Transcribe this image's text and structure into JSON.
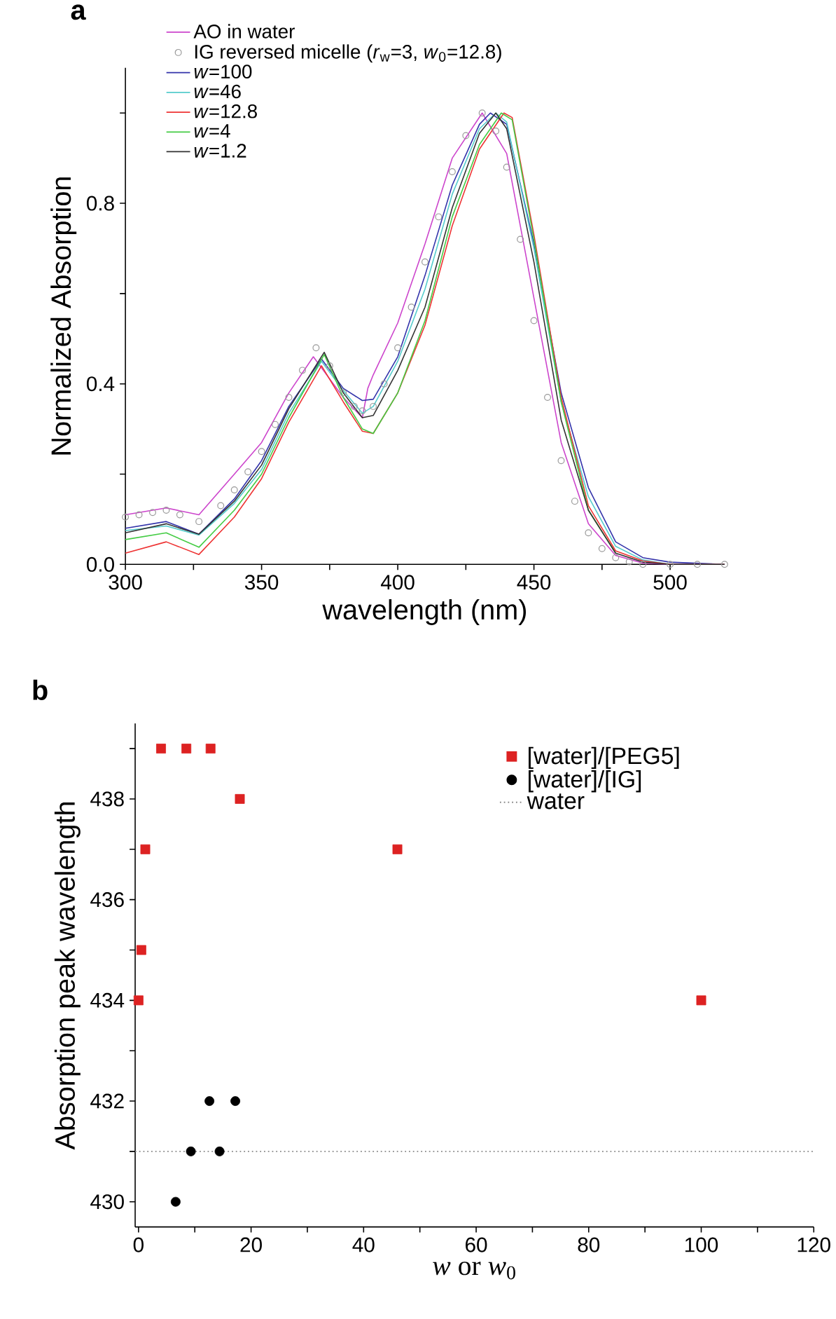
{
  "chart_data": [
    {
      "type": "line",
      "title": "a",
      "xlabel": "wavelength (nm)",
      "ylabel": "Normalized Absorption",
      "xlim": [
        300,
        520
      ],
      "ylim": [
        0,
        1.1
      ],
      "xticks": [
        300,
        {
          "value": 325,
          "label": null
        },
        350,
        {
          "value": 375,
          "label": null
        },
        400,
        {
          "value": 425,
          "label": null
        },
        450,
        {
          "value": 475,
          "label": null
        },
        500
      ],
      "yticks": [
        {
          "value": 0,
          "label": "0.0"
        },
        {
          "value": 0.2,
          "label": null
        },
        {
          "value": 0.4,
          "label": "0.4"
        },
        {
          "value": 0.6,
          "label": null
        },
        {
          "value": 0.8,
          "label": "0.8"
        },
        {
          "value": 1.0,
          "label": null
        }
      ],
      "legend": "top left",
      "grid": false,
      "series": [
        {
          "name": "AO in water",
          "color": "#cc44cc",
          "x": [
            300,
            315,
            327,
            340,
            350,
            360,
            369,
            380,
            387,
            389,
            391,
            400,
            410,
            420,
            431,
            440,
            450,
            460,
            470,
            480,
            490,
            500,
            520
          ],
          "values": [
            0.11,
            0.125,
            0.11,
            0.2,
            0.27,
            0.38,
            0.46,
            0.37,
            0.325,
            0.39,
            0.42,
            0.535,
            0.71,
            0.9,
            1.0,
            0.91,
            0.59,
            0.27,
            0.09,
            0.02,
            0.003,
            0,
            0
          ]
        },
        {
          "name": "IG reversed micelle (*r*$_{w}$=3, *w*$_{0}$=12.8)",
          "type": "scatter",
          "marker": "circle",
          "color": "#999999",
          "x": [
            300,
            305,
            310,
            315,
            320,
            327,
            335,
            340,
            345,
            350,
            355,
            360,
            365,
            370,
            375,
            380,
            384,
            387,
            391,
            395,
            400,
            405,
            410,
            415,
            420,
            425,
            431,
            436,
            440,
            445,
            450,
            455,
            460,
            465,
            470,
            475,
            480,
            485,
            490,
            500,
            510,
            520
          ],
          "values": [
            0.105,
            0.11,
            0.115,
            0.12,
            0.11,
            0.095,
            0.13,
            0.165,
            0.205,
            0.25,
            0.31,
            0.37,
            0.43,
            0.48,
            0.44,
            0.38,
            0.35,
            0.34,
            0.35,
            0.4,
            0.48,
            0.57,
            0.67,
            0.77,
            0.87,
            0.95,
            1.0,
            0.96,
            0.88,
            0.72,
            0.54,
            0.37,
            0.23,
            0.14,
            0.07,
            0.035,
            0.015,
            0.006,
            0,
            0,
            0,
            0
          ]
        },
        {
          "name": "*w*=100",
          "color": "#3333aa",
          "x": [
            300,
            315,
            327,
            340,
            350,
            360,
            372,
            380,
            387,
            391,
            400,
            410,
            420,
            430,
            434,
            440,
            450,
            460,
            470,
            480,
            490,
            500,
            520
          ],
          "values": [
            0.08,
            0.095,
            0.067,
            0.145,
            0.23,
            0.35,
            0.455,
            0.39,
            0.363,
            0.366,
            0.46,
            0.64,
            0.84,
            0.975,
            1.0,
            0.975,
            0.71,
            0.38,
            0.17,
            0.05,
            0.015,
            0.005,
            0
          ]
        },
        {
          "name": "*w*=46",
          "color": "#55cccc",
          "x": [
            300,
            315,
            327,
            340,
            350,
            360,
            372,
            380,
            387,
            391,
            400,
            410,
            420,
            430,
            436,
            440,
            450,
            460,
            470,
            480,
            490,
            500,
            520
          ],
          "values": [
            0.075,
            0.085,
            0.065,
            0.135,
            0.21,
            0.335,
            0.45,
            0.385,
            0.335,
            0.35,
            0.45,
            0.61,
            0.82,
            0.965,
            1.0,
            0.98,
            0.7,
            0.36,
            0.15,
            0.04,
            0.01,
            0,
            0
          ]
        },
        {
          "name": "*w*=12.8",
          "color": "#ee3333",
          "x": [
            300,
            315,
            327,
            340,
            350,
            360,
            372,
            380,
            387,
            391,
            400,
            410,
            420,
            430,
            439,
            442,
            450,
            460,
            470,
            480,
            490,
            500,
            520
          ],
          "values": [
            0.025,
            0.05,
            0.022,
            0.105,
            0.19,
            0.315,
            0.44,
            0.36,
            0.295,
            0.29,
            0.38,
            0.53,
            0.75,
            0.92,
            1.0,
            0.99,
            0.73,
            0.37,
            0.13,
            0.03,
            0.008,
            0,
            0
          ]
        },
        {
          "name": "*w*=4",
          "color": "#44cc44",
          "x": [
            300,
            315,
            327,
            340,
            350,
            360,
            373,
            380,
            387,
            391,
            400,
            410,
            420,
            430,
            438,
            442,
            450,
            460,
            470,
            480
          ],
          "values": [
            0.055,
            0.07,
            0.038,
            0.12,
            0.2,
            0.325,
            0.465,
            0.37,
            0.3,
            0.29,
            0.38,
            0.54,
            0.77,
            0.93,
            1.0,
            0.985,
            0.72,
            0.36,
            0.12,
            0.025
          ]
        },
        {
          "name": "*w*=1.2",
          "color": "#333333",
          "x": [
            300,
            315,
            327,
            340,
            350,
            360,
            373,
            380,
            387,
            391,
            400,
            410,
            420,
            430,
            436,
            440,
            450,
            460,
            470,
            480,
            490,
            500,
            520
          ],
          "values": [
            0.07,
            0.09,
            0.067,
            0.14,
            0.22,
            0.345,
            0.47,
            0.38,
            0.325,
            0.33,
            0.43,
            0.57,
            0.79,
            0.955,
            1.0,
            0.965,
            0.67,
            0.32,
            0.12,
            0.025,
            0.005,
            0,
            0
          ]
        }
      ]
    },
    {
      "type": "scatter",
      "title": "b",
      "xlabel": "*w* or *w*$_{0}$",
      "ylabel": "Absorption peak wavelength",
      "xlim": [
        -0.6,
        120
      ],
      "ylim": [
        429.5,
        439.5
      ],
      "xticks": [
        0,
        {
          "value": 10,
          "label": null
        },
        20,
        {
          "value": 30,
          "label": null
        },
        40,
        {
          "value": 50,
          "label": null
        },
        60,
        {
          "value": 70,
          "label": null
        },
        80,
        {
          "value": 90,
          "label": null
        },
        100,
        {
          "value": 110,
          "label": null
        },
        120
      ],
      "yticks": [
        430,
        {
          "value": 431,
          "label": null
        },
        432,
        {
          "value": 433,
          "label": null
        },
        434,
        {
          "value": 435,
          "label": null
        },
        436,
        {
          "value": 437,
          "label": null
        },
        438,
        {
          "value": 439,
          "label": null
        }
      ],
      "legend": "top right",
      "grid": false,
      "series": [
        {
          "name": "[water]/[PEG5]",
          "marker": "square",
          "color": "#dd2222",
          "x": [
            4,
            8.5,
            12.8,
            18,
            1.2,
            46,
            0.5,
            0,
            100
          ],
          "values": [
            439,
            439,
            439,
            438,
            437,
            437,
            435,
            434,
            434
          ]
        },
        {
          "name": "[water]/[IG]",
          "marker": "circle",
          "color": "#000000",
          "x": [
            6.6,
            9.3,
            14.4,
            12.6,
            17.2
          ],
          "values": [
            430,
            431,
            431,
            432,
            432
          ]
        }
      ],
      "ref_lines": [
        {
          "axis": "y",
          "value": 431,
          "label": "water",
          "color": "#888888",
          "line_style": "dotted"
        }
      ]
    }
  ]
}
